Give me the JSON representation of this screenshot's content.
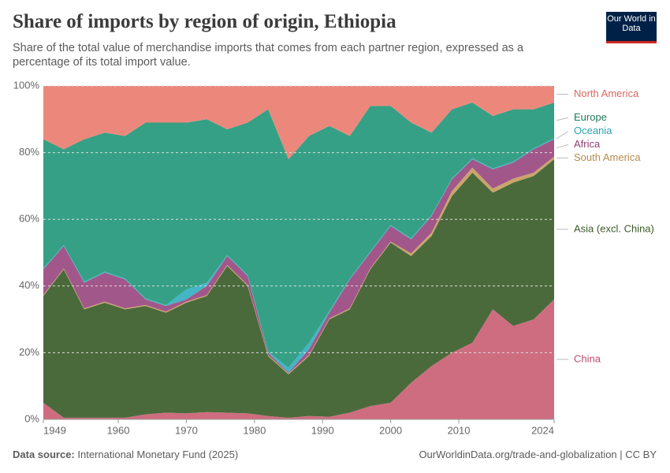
{
  "chart_data": {
    "type": "stacked-area",
    "title": "Share of imports by region of origin, Ethiopia",
    "subtitle": "Share of the total value of merchandise imports that comes from each partner region, expressed as a percentage of its total import value.",
    "logo": "Our World in Data",
    "source_label": "Data source:",
    "source": "International Monetary Fund (2025)",
    "footer_right": "OurWorldinData.org/trade-and-globalization | CC BY",
    "x": [
      1949,
      1952,
      1955,
      1958,
      1961,
      1964,
      1967,
      1970,
      1973,
      1976,
      1979,
      1982,
      1985,
      1988,
      1991,
      1994,
      1997,
      2000,
      2003,
      2006,
      2009,
      2012,
      2015,
      2018,
      2021,
      2024
    ],
    "xlim": [
      1949,
      2024
    ],
    "xticks": [
      1949,
      1960,
      1970,
      1980,
      1990,
      2000,
      2010,
      2024
    ],
    "ylim": [
      0,
      100
    ],
    "yticks": [
      {
        "value": 0,
        "label": "0%"
      },
      {
        "value": 20,
        "label": "20%"
      },
      {
        "value": 40,
        "label": "40%"
      },
      {
        "value": 60,
        "label": "60%"
      },
      {
        "value": 80,
        "label": "80%"
      },
      {
        "value": 100,
        "label": "100%"
      }
    ],
    "grid": true,
    "series": [
      {
        "name": "China",
        "color": "#cf6d80",
        "label_color": "#c04a68",
        "values": [
          5,
          0.5,
          0.5,
          0.5,
          0.5,
          1.5,
          2,
          1.8,
          2.2,
          2,
          1.8,
          1,
          0.5,
          1,
          0.8,
          2,
          4,
          5,
          11,
          16,
          20,
          23,
          33,
          28,
          30,
          36
        ]
      },
      {
        "name": "Asia (excl. China)",
        "color": "#4b6a3b",
        "label_color": "#3b5a2a",
        "values": [
          32,
          44.5,
          32.5,
          34.5,
          32.5,
          32.5,
          30,
          33.2,
          34.8,
          44,
          38.2,
          18,
          13,
          18,
          29.2,
          31,
          41,
          48,
          38,
          39,
          47,
          51,
          35,
          43,
          43,
          42
        ]
      },
      {
        "name": "South America",
        "color": "#c9a56b",
        "label_color": "#b78a4f",
        "values": [
          0.3,
          0.3,
          0.3,
          0.3,
          0.3,
          0.3,
          0.3,
          0.3,
          0.3,
          0.3,
          0.3,
          0.3,
          0.3,
          0.3,
          0.3,
          0.3,
          0.3,
          0.3,
          0.8,
          1,
          1.5,
          1.5,
          1.2,
          1.2,
          1,
          0.8
        ]
      },
      {
        "name": "Africa",
        "color": "#a2578a",
        "label_color": "#8f3f74",
        "values": [
          7.7,
          6.7,
          7.7,
          8.7,
          8.7,
          1.7,
          1.7,
          0.7,
          2.7,
          2.7,
          2.7,
          0.7,
          0.2,
          1.7,
          1.7,
          8.7,
          4.7,
          4.7,
          4.2,
          5,
          3.5,
          2.5,
          5.8,
          4.8,
          7,
          5.2
        ]
      },
      {
        "name": "Oceania",
        "color": "#43b5c4",
        "label_color": "#2aa3b3",
        "values": [
          0.3,
          0.3,
          0.3,
          0.3,
          0.3,
          0.3,
          0.3,
          3,
          1,
          0.3,
          0.3,
          0.3,
          1.5,
          2,
          0.5,
          0.3,
          0.3,
          0.3,
          0.3,
          0.3,
          0.3,
          0.3,
          0.3,
          0.3,
          0.3,
          0.3
        ]
      },
      {
        "name": "Europe",
        "color": "#35a085",
        "label_color": "#1f7a5e",
        "values": [
          38.7,
          28.7,
          42.7,
          41.7,
          42.7,
          52.7,
          54.7,
          50,
          49,
          37.7,
          45.7,
          72.7,
          62.5,
          62,
          55.5,
          42.7,
          43.7,
          35.7,
          34.7,
          24.7,
          20.7,
          16.7,
          15.7,
          15.7,
          11.7,
          10.7
        ]
      },
      {
        "name": "North America",
        "color": "#eb887b",
        "label_color": "#d9685e",
        "values": [
          16,
          19,
          16,
          14,
          15,
          11,
          11,
          11,
          10,
          13,
          11,
          7,
          22,
          15,
          12,
          15,
          6,
          6,
          11,
          14,
          7,
          5,
          9,
          7,
          7,
          5
        ]
      }
    ]
  }
}
